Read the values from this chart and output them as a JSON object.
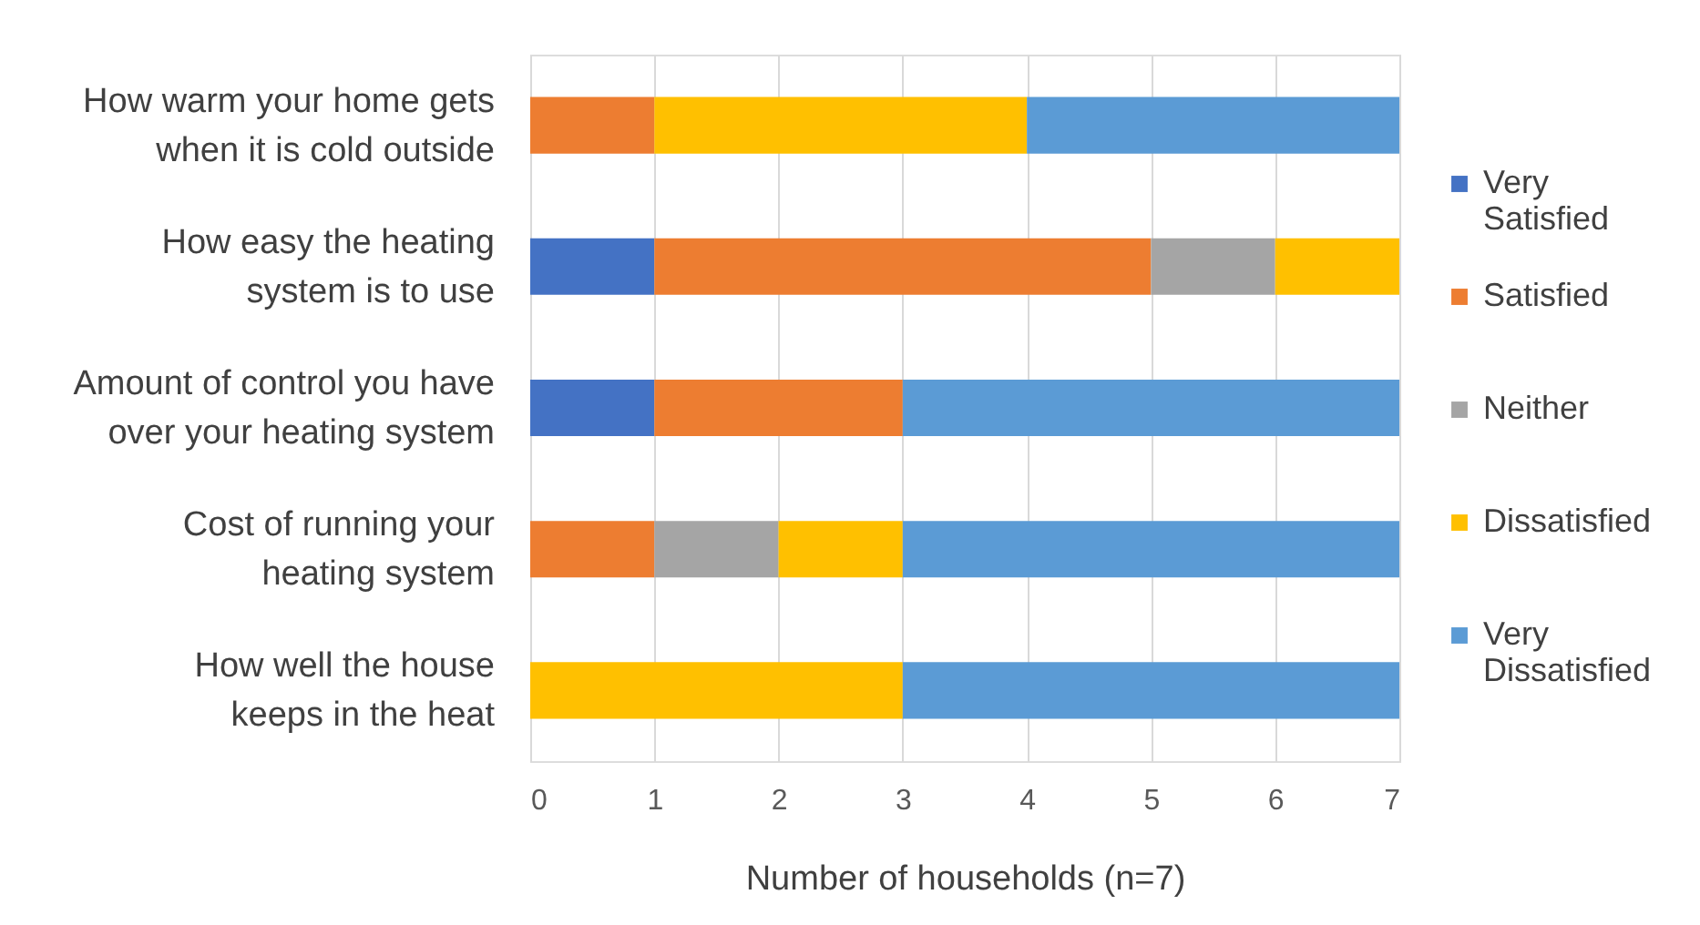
{
  "chart_data": {
    "type": "bar",
    "orientation": "horizontal",
    "stacked": true,
    "categories": [
      "How warm your home gets when it is cold outside",
      "How easy the heating system is to use",
      "Amount of control you have over your heating system",
      "Cost of running your heating system",
      "How well the house keeps in the heat"
    ],
    "series": [
      {
        "name": "Very Satisfied",
        "color": "#4472c4",
        "values": [
          0,
          1,
          1,
          0,
          0
        ]
      },
      {
        "name": "Satisfied",
        "color": "#ed7d31",
        "values": [
          1,
          4,
          2,
          1,
          0
        ]
      },
      {
        "name": "Neither",
        "color": "#a5a5a5",
        "values": [
          0,
          1,
          0,
          1,
          0
        ]
      },
      {
        "name": "Dissatisfied",
        "color": "#ffc000",
        "values": [
          3,
          1,
          0,
          1,
          3
        ]
      },
      {
        "name": "Very Dissatisfied",
        "color": "#5b9bd5",
        "values": [
          3,
          0,
          4,
          4,
          4
        ]
      }
    ],
    "xlabel": "Number of households (n=7)",
    "xlim": [
      0,
      7
    ],
    "xticks": [
      0,
      1,
      2,
      3,
      4,
      5,
      6,
      7
    ],
    "grid": "x",
    "legend": "right"
  }
}
